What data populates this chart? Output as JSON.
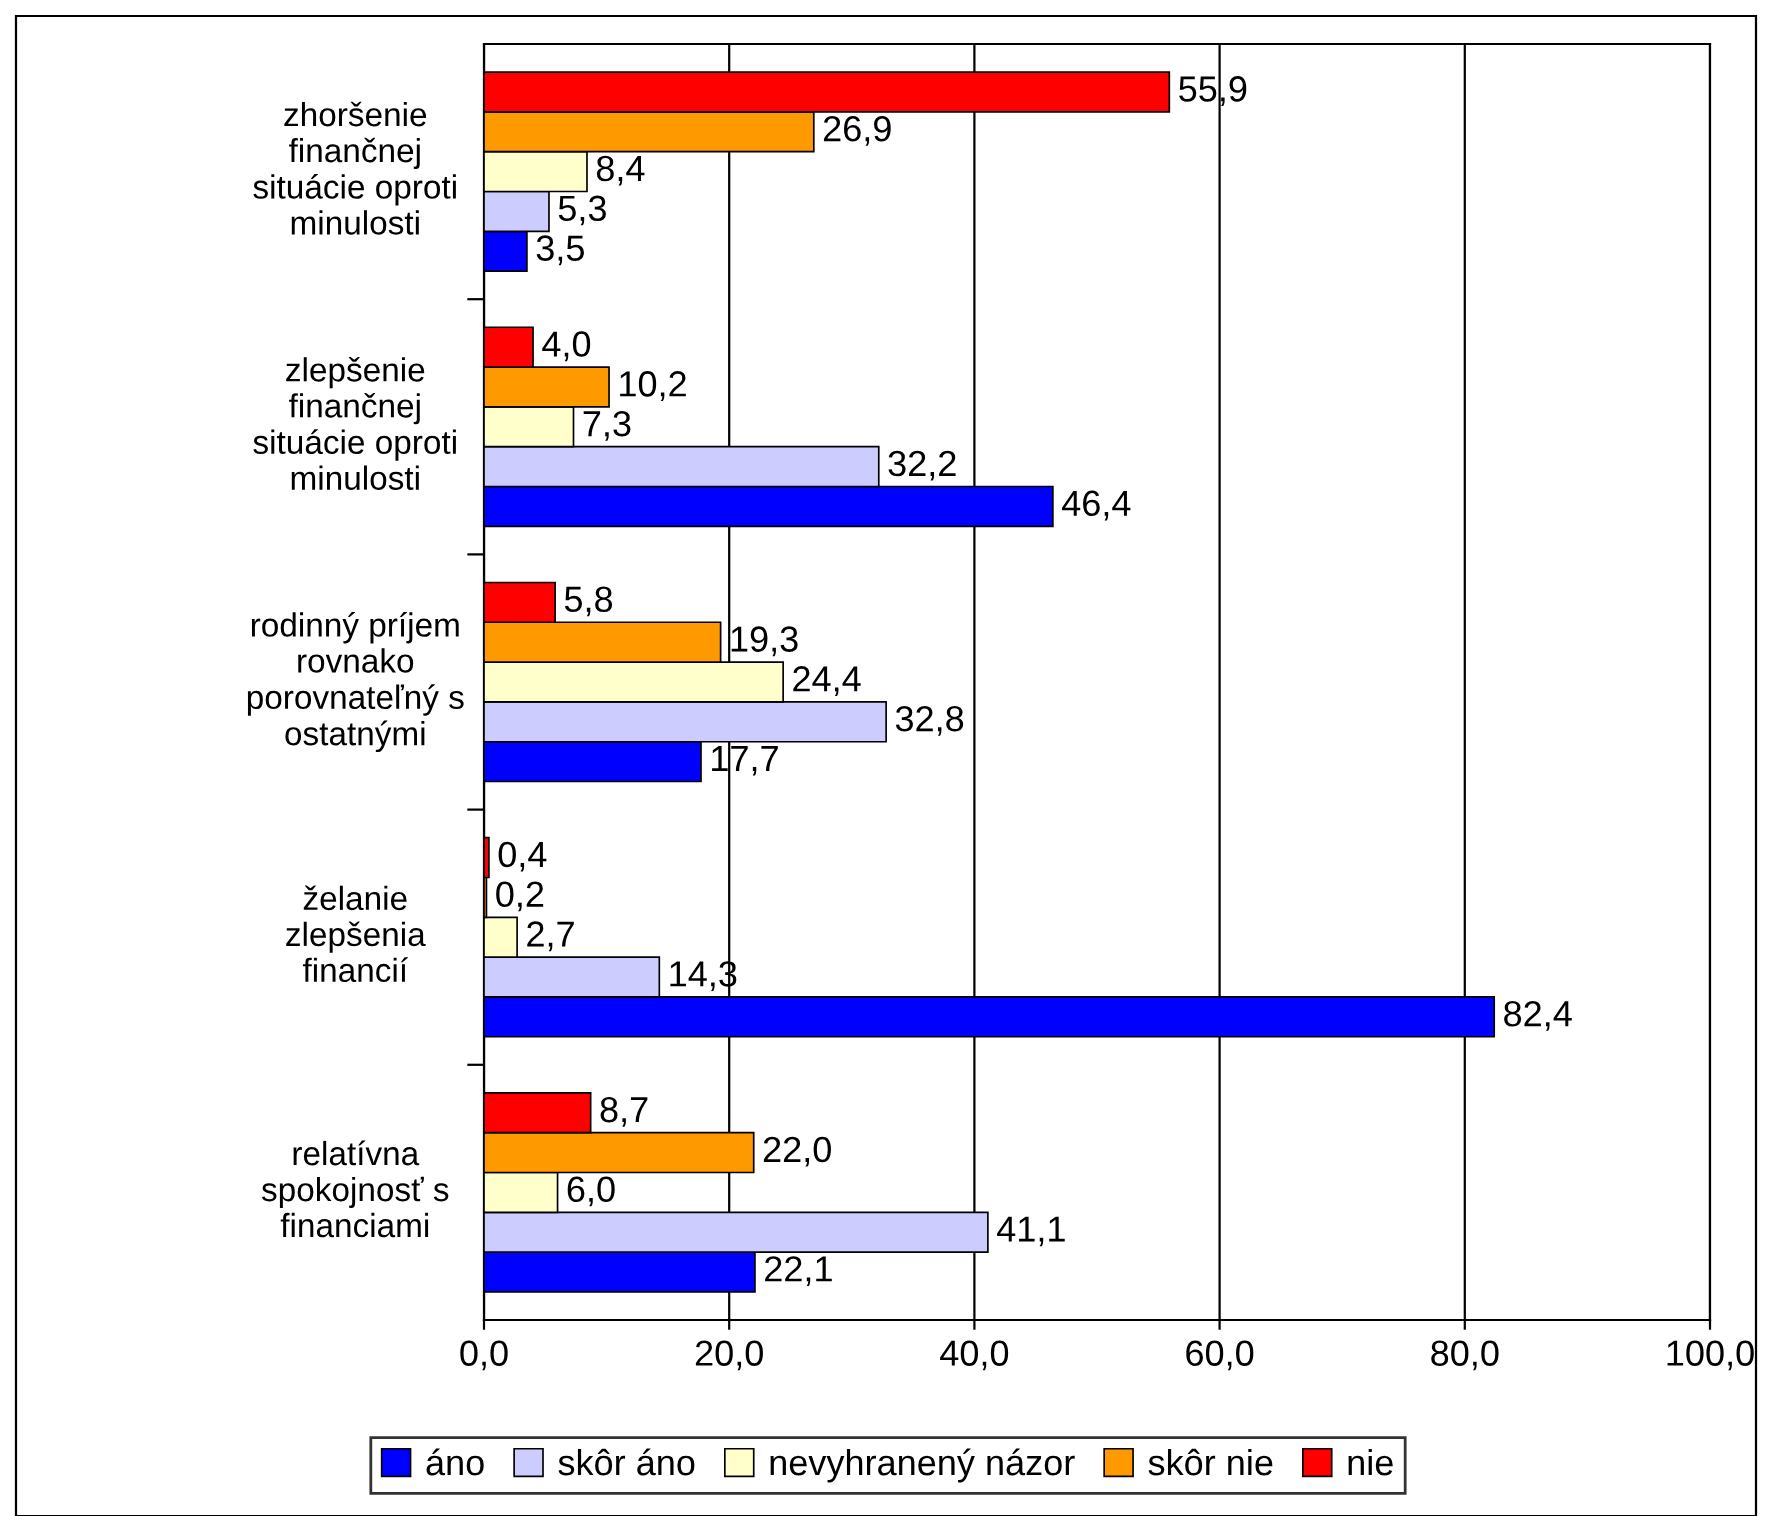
{
  "chart_data": {
    "type": "bar",
    "orientation": "horizontal",
    "categories": [
      "zhoršenie\nfinančnej\nsituácie oproti\nminulosti",
      "zlepšenie\nfinančnej\nsituácie oproti\nminulosti",
      "rodinný príjem\nrovnako\nporovnateľný s\nostatnými",
      "želanie\nzlepšenia\nfinancií",
      "relatívna\nspokojnosť s\nfinanciami"
    ],
    "series": [
      {
        "name": "áno",
        "color": "#0000ff",
        "values": [
          3.5,
          46.4,
          17.7,
          82.4,
          22.1
        ],
        "value_labels": [
          "3,5",
          "46,4",
          "17,7",
          "82,4",
          "22,1"
        ]
      },
      {
        "name": "skôr áno",
        "color": "#ccccff",
        "values": [
          5.3,
          32.2,
          32.8,
          14.3,
          41.1
        ],
        "value_labels": [
          "5,3",
          "32,2",
          "32,8",
          "14,3",
          "41,1"
        ]
      },
      {
        "name": "nevyhranený názor",
        "color": "#ffffcc",
        "values": [
          8.4,
          7.3,
          24.4,
          2.7,
          6.0
        ],
        "value_labels": [
          "8,4",
          "7,3",
          "24,4",
          "2,7",
          "6,0"
        ]
      },
      {
        "name": "skôr nie",
        "color": "#ff9900",
        "values": [
          26.9,
          10.2,
          19.3,
          0.2,
          22.0
        ],
        "value_labels": [
          "26,9",
          "10,2",
          "19,3",
          "0,2",
          "22,0"
        ]
      },
      {
        "name": "nie",
        "color": "#ff0000",
        "values": [
          55.9,
          4.0,
          5.8,
          0.4,
          8.7
        ],
        "value_labels": [
          "55,9",
          "4,0",
          "5,8",
          "0,4",
          "8,7"
        ]
      }
    ],
    "xlim": [
      0,
      100
    ],
    "xticks": [
      {
        "value": 0,
        "label": "0,0"
      },
      {
        "value": 20,
        "label": "20,0"
      },
      {
        "value": 40,
        "label": "40,0"
      },
      {
        "value": 60,
        "label": "60,0"
      },
      {
        "value": 80,
        "label": "80,0"
      },
      {
        "value": 100,
        "label": "100,0"
      }
    ],
    "grid": "x",
    "legend": "bottom"
  }
}
